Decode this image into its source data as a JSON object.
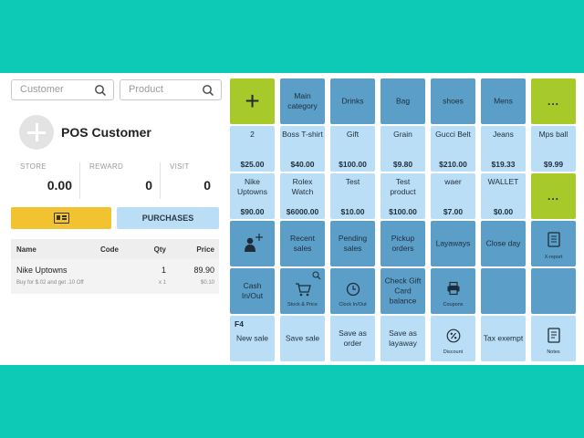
{
  "search": {
    "customer_placeholder": "Customer",
    "product_placeholder": "Product"
  },
  "customer": {
    "name": "POS Customer"
  },
  "stats": [
    {
      "label": "STORE",
      "value": "0.00"
    },
    {
      "label": "REWARD",
      "value": "0"
    },
    {
      "label": "VISIT",
      "value": "0"
    }
  ],
  "buttons": {
    "purchases": "PURCHASES"
  },
  "cart": {
    "headers": {
      "name": "Name",
      "code": "Code",
      "qty": "Qty",
      "price": "Price"
    },
    "rows": [
      {
        "name": "Nike Uptowns",
        "code": "",
        "qty": "1",
        "price": "89.90",
        "discount_text": "Buy for $.02 and get .10 Off",
        "discount_qty": "x 1",
        "discount_price": "$0.10"
      }
    ]
  },
  "grid": {
    "row1": [
      "Main category",
      "Drinks",
      "Bag",
      "shoes",
      "Mens",
      "..."
    ],
    "row2": [
      {
        "name": "2",
        "price": "$25.00"
      },
      {
        "name": "Boss T-shirt",
        "price": "$40.00"
      },
      {
        "name": "Gift",
        "price": "$100.00"
      },
      {
        "name": "Grain",
        "price": "$9.80"
      },
      {
        "name": "Gucci Belt",
        "price": "$210.00"
      },
      {
        "name": "Jeans",
        "price": "$19.33"
      },
      {
        "name": "Mps ball",
        "price": "$9.99"
      }
    ],
    "row3": [
      {
        "name": "Nike Uptowns",
        "price": "$90.00"
      },
      {
        "name": "Rolex Watch",
        "price": "$6000.00"
      },
      {
        "name": "Test",
        "price": "$10.00"
      },
      {
        "name": "Test product",
        "price": "$100.00"
      },
      {
        "name": "waer",
        "price": "$7.00"
      },
      {
        "name": "WALLET",
        "price": "$0.00"
      }
    ],
    "row3_more": "...",
    "row4": [
      "Recent sales",
      "Pending sales",
      "Pickup orders",
      "Layaways",
      "Close day",
      "X-report"
    ],
    "row5": [
      "Cash In/Out",
      "Stock & Price",
      "Clock In/Out",
      "Check Gift Card balance",
      "Coupons"
    ],
    "row6": {
      "f4": "F4",
      "new_sale": "New sale",
      "save_sale": "Save sale",
      "save_order": "Save as order",
      "save_layaway": "Save as layaway",
      "discount": "Discount",
      "tax_exempt": "Tax exempt",
      "notes": "Notes"
    }
  },
  "colors": {
    "background": "#0ccab6",
    "tile_dark": "#5b9ec7",
    "tile_light": "#b9def5",
    "tile_green": "#a8c92a",
    "button_yellow": "#f2c331"
  }
}
